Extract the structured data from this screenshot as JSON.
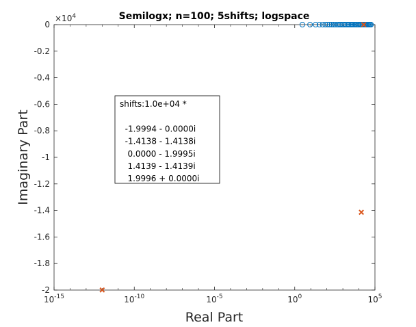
{
  "chart_data": {
    "type": "scatter",
    "title": "Semilogx; n=100; 5shifts; logspace",
    "xlabel": "Real Part",
    "ylabel": "Imaginary Part",
    "xscale": "log",
    "xlim": [
      1e-15,
      100000.0
    ],
    "ylim": [
      -20000,
      0
    ],
    "y_exponent_label": "×10",
    "y_exponent_power": "4",
    "x_ticks": [
      {
        "value": 1e-15,
        "base": "10",
        "exp": "-15"
      },
      {
        "value": 1e-10,
        "base": "10",
        "exp": "-10"
      },
      {
        "value": 1e-05,
        "base": "10",
        "exp": "-5"
      },
      {
        "value": 1,
        "base": "10",
        "exp": "0"
      },
      {
        "value": 100000.0,
        "base": "10",
        "exp": "5"
      }
    ],
    "y_ticks": [
      {
        "value": 0,
        "label": "0"
      },
      {
        "value": -2000,
        "label": "-0.2"
      },
      {
        "value": -4000,
        "label": "-0.4"
      },
      {
        "value": -6000,
        "label": "-0.6"
      },
      {
        "value": -8000,
        "label": "-0.8"
      },
      {
        "value": -10000,
        "label": "-1"
      },
      {
        "value": -12000,
        "label": "-1.2"
      },
      {
        "value": -14000,
        "label": "-1.4"
      },
      {
        "value": -16000,
        "label": "-1.6"
      },
      {
        "value": -18000,
        "label": "-1.8"
      },
      {
        "value": -20000,
        "label": "-2"
      }
    ],
    "grid": false,
    "series": [
      {
        "marker": "circle",
        "color": "#0072BD",
        "x": [
          3,
          9,
          20,
          35,
          55,
          80,
          110,
          150,
          200,
          260,
          330,
          420,
          530,
          660,
          820,
          1000,
          1250,
          1550,
          1900,
          2300,
          2800,
          3400,
          4100,
          5000,
          6000,
          7200,
          8600,
          10000,
          12000,
          14000,
          16500,
          19000,
          22000,
          25000,
          29000,
          33000,
          38000,
          44000,
          50000,
          57000
        ],
        "y": [
          0,
          0,
          0,
          0,
          0,
          0,
          0,
          0,
          0,
          0,
          0,
          0,
          0,
          0,
          0,
          0,
          0,
          0,
          0,
          0,
          0,
          0,
          0,
          0,
          0,
          0,
          0,
          0,
          0,
          0,
          0,
          0,
          0,
          0,
          0,
          0,
          0,
          0,
          0,
          0
        ]
      },
      {
        "marker": "x",
        "color": "#D95319",
        "x": [
          1e-12,
          14139,
          19996
        ],
        "y": [
          -19995,
          -14139,
          0
        ]
      }
    ],
    "annotation": {
      "lines": [
        "shifts:1.0e+04 *",
        "",
        "  -1.9994 - 0.0000i",
        "  -1.4138 - 1.4138i",
        "   0.0000 - 1.9995i",
        "   1.4139 - 1.4139i",
        "   1.9996 + 0.0000i"
      ]
    }
  }
}
